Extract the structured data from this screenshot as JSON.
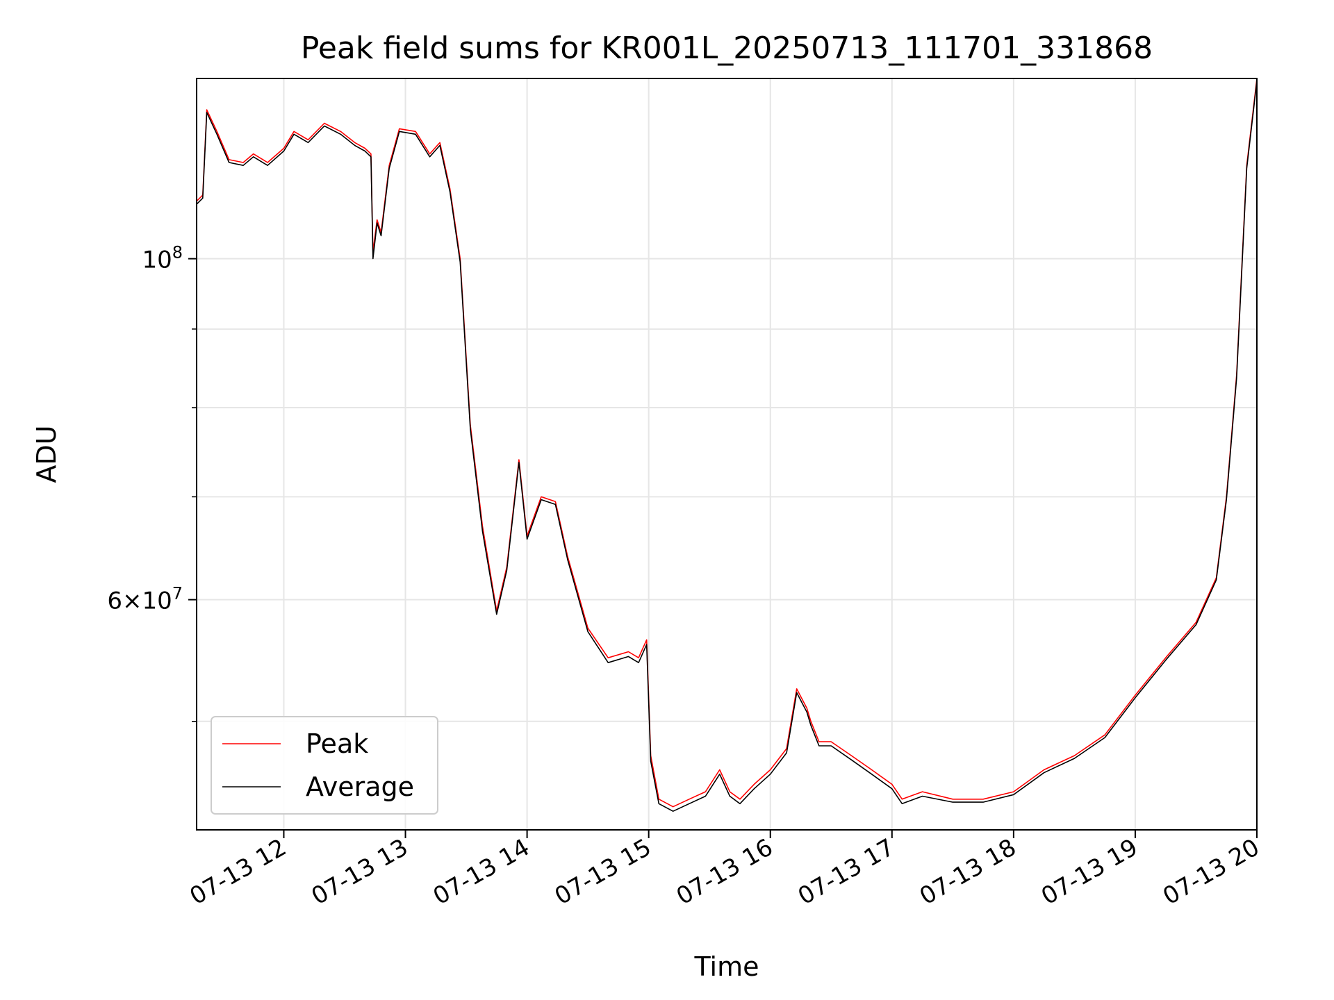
{
  "chart_data": {
    "type": "line",
    "title": "Peak field sums for KR001L_20250713_111701_331868",
    "xlabel": "Time",
    "ylabel": "ADU",
    "yscale": "log",
    "grid": true,
    "legend_position": "lower-left",
    "xlim": [
      "07-13 11:17",
      "07-13 20:00"
    ],
    "ylim": [
      42500000,
      131000000
    ],
    "x_ticks": [
      {
        "label": "07-13 12",
        "value": "07-13 12:00"
      },
      {
        "label": "07-13 13",
        "value": "07-13 13:00"
      },
      {
        "label": "07-13 14",
        "value": "07-13 14:00"
      },
      {
        "label": "07-13 15",
        "value": "07-13 15:00"
      },
      {
        "label": "07-13 16",
        "value": "07-13 16:00"
      },
      {
        "label": "07-13 17",
        "value": "07-13 17:00"
      },
      {
        "label": "07-13 18",
        "value": "07-13 18:00"
      },
      {
        "label": "07-13 19",
        "value": "07-13 19:00"
      },
      {
        "label": "07-13 20",
        "value": "07-13 20:00"
      }
    ],
    "y_ticks": [
      {
        "label": "10^8",
        "value": 100000000
      },
      {
        "label": "6×10^7",
        "value": 60000000
      }
    ],
    "y_minor_ticks": [
      50000000,
      70000000,
      80000000,
      90000000
    ],
    "series": [
      {
        "name": "Peak",
        "color": "#ff0000",
        "x": [
          "07-13 11:17",
          "07-13 11:20",
          "07-13 11:22",
          "07-13 11:27",
          "07-13 11:33",
          "07-13 11:40",
          "07-13 11:45",
          "07-13 11:52",
          "07-13 12:00",
          "07-13 12:05",
          "07-13 12:12",
          "07-13 12:20",
          "07-13 12:28",
          "07-13 12:35",
          "07-13 12:40",
          "07-13 12:43",
          "07-13 12:44",
          "07-13 12:46",
          "07-13 12:48",
          "07-13 12:52",
          "07-13 12:57",
          "07-13 13:05",
          "07-13 13:12",
          "07-13 13:17",
          "07-13 13:22",
          "07-13 13:27",
          "07-13 13:32",
          "07-13 13:38",
          "07-13 13:45",
          "07-13 13:50",
          "07-13 13:56",
          "07-13 14:00",
          "07-13 14:07",
          "07-13 14:14",
          "07-13 14:20",
          "07-13 14:30",
          "07-13 14:40",
          "07-13 14:50",
          "07-13 14:55",
          "07-13 14:59",
          "07-13 15:01",
          "07-13 15:05",
          "07-13 15:12",
          "07-13 15:20",
          "07-13 15:28",
          "07-13 15:35",
          "07-13 15:40",
          "07-13 15:45",
          "07-13 15:52",
          "07-13 16:00",
          "07-13 16:08",
          "07-13 16:13",
          "07-13 16:18",
          "07-13 16:20",
          "07-13 16:24",
          "07-13 16:30",
          "07-13 16:40",
          "07-13 16:50",
          "07-13 17:00",
          "07-13 17:05",
          "07-13 17:15",
          "07-13 17:30",
          "07-13 17:45",
          "07-13 18:00",
          "07-13 18:15",
          "07-13 18:30",
          "07-13 18:45",
          "07-13 19:00",
          "07-13 19:15",
          "07-13 19:30",
          "07-13 19:40",
          "07-13 19:45",
          "07-13 19:50",
          "07-13 19:55",
          "07-13 20:00"
        ],
        "values": [
          109000000,
          110000000,
          125000000,
          121000000,
          116000000,
          115500000,
          117000000,
          115500000,
          118000000,
          121000000,
          119500000,
          122500000,
          121000000,
          119000000,
          118000000,
          117000000,
          101000000,
          106000000,
          104000000,
          115000000,
          121500000,
          121000000,
          117000000,
          119000000,
          111000000,
          100000000,
          78000000,
          67000000,
          59000000,
          63000000,
          74000000,
          66000000,
          70000000,
          69500000,
          64000000,
          57500000,
          55000000,
          55500000,
          55000000,
          56500000,
          47500000,
          44500000,
          44000000,
          44500000,
          45000000,
          46500000,
          45000000,
          44500000,
          45500000,
          46500000,
          48000000,
          52500000,
          51000000,
          50000000,
          48500000,
          48500000,
          47500000,
          46500000,
          45500000,
          44500000,
          45000000,
          44500000,
          44500000,
          45000000,
          46500000,
          47500000,
          49000000,
          52000000,
          55000000,
          58000000,
          62000000,
          70000000,
          84000000,
          115000000,
          131000000
        ]
      },
      {
        "name": "Average",
        "color": "#000000",
        "x": [
          "07-13 11:17",
          "07-13 11:20",
          "07-13 11:22",
          "07-13 11:27",
          "07-13 11:33",
          "07-13 11:40",
          "07-13 11:45",
          "07-13 11:52",
          "07-13 12:00",
          "07-13 12:05",
          "07-13 12:12",
          "07-13 12:20",
          "07-13 12:28",
          "07-13 12:35",
          "07-13 12:40",
          "07-13 12:43",
          "07-13 12:44",
          "07-13 12:46",
          "07-13 12:48",
          "07-13 12:52",
          "07-13 12:57",
          "07-13 13:05",
          "07-13 13:12",
          "07-13 13:17",
          "07-13 13:22",
          "07-13 13:27",
          "07-13 13:32",
          "07-13 13:38",
          "07-13 13:45",
          "07-13 13:50",
          "07-13 13:56",
          "07-13 14:00",
          "07-13 14:07",
          "07-13 14:14",
          "07-13 14:20",
          "07-13 14:30",
          "07-13 14:40",
          "07-13 14:50",
          "07-13 14:55",
          "07-13 14:59",
          "07-13 15:01",
          "07-13 15:05",
          "07-13 15:12",
          "07-13 15:20",
          "07-13 15:28",
          "07-13 15:35",
          "07-13 15:40",
          "07-13 15:45",
          "07-13 15:52",
          "07-13 16:00",
          "07-13 16:08",
          "07-13 16:13",
          "07-13 16:18",
          "07-13 16:20",
          "07-13 16:24",
          "07-13 16:30",
          "07-13 16:40",
          "07-13 16:50",
          "07-13 17:00",
          "07-13 17:05",
          "07-13 17:15",
          "07-13 17:30",
          "07-13 17:45",
          "07-13 18:00",
          "07-13 18:15",
          "07-13 18:30",
          "07-13 18:45",
          "07-13 19:00",
          "07-13 19:15",
          "07-13 19:30",
          "07-13 19:40",
          "07-13 19:45",
          "07-13 19:50",
          "07-13 19:55",
          "07-13 20:00"
        ],
        "values": [
          108500000,
          109500000,
          124500000,
          120500000,
          115500000,
          115000000,
          116500000,
          115000000,
          117500000,
          120500000,
          119000000,
          122000000,
          120500000,
          118500000,
          117500000,
          116500000,
          100000000,
          105500000,
          103500000,
          114500000,
          121000000,
          120500000,
          116500000,
          118500000,
          110500000,
          99500000,
          77500000,
          66500000,
          58700000,
          62700000,
          73700000,
          65700000,
          69700000,
          69200000,
          63700000,
          57200000,
          54600000,
          55100000,
          54600000,
          56100000,
          47100000,
          44200000,
          43700000,
          44200000,
          44700000,
          46200000,
          44700000,
          44200000,
          45200000,
          46200000,
          47700000,
          52200000,
          50700000,
          49700000,
          48200000,
          48200000,
          47200000,
          46200000,
          45200000,
          44200000,
          44700000,
          44300000,
          44300000,
          44800000,
          46300000,
          47300000,
          48800000,
          51800000,
          54800000,
          57800000,
          61800000,
          69700000,
          83600000,
          114500000,
          130500000
        ]
      }
    ]
  }
}
